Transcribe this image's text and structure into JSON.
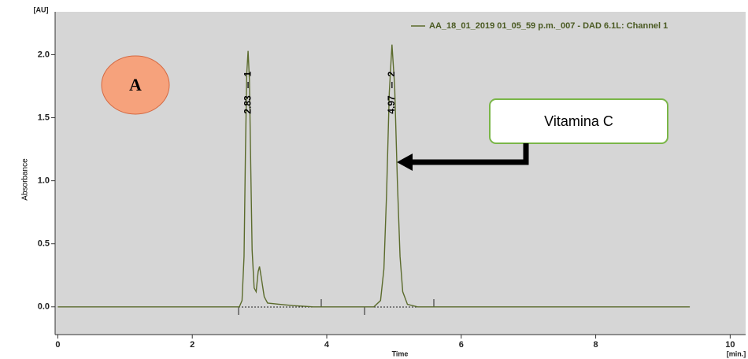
{
  "chart_data": {
    "type": "line",
    "y_unit": "[AU]",
    "x_unit": "[min.]",
    "x_label": "Time",
    "y_label": "Absorbance",
    "xlim": [
      -0.04,
      10.23
    ],
    "ylim": [
      -0.22,
      2.34
    ],
    "xticks": [
      0,
      2,
      4,
      6,
      8,
      10
    ],
    "yticks": [
      {
        "value": 0,
        "label": "0.0"
      },
      {
        "value": 0.5,
        "label": "0.5"
      },
      {
        "value": 1,
        "label": "1.0"
      },
      {
        "value": 1.5,
        "label": "1.5"
      },
      {
        "value": 2,
        "label": "2.0"
      }
    ],
    "x": [
      0,
      2.7,
      2.74,
      2.77,
      2.79,
      2.81,
      2.83,
      2.85,
      2.87,
      2.89,
      2.92,
      2.95,
      2.98,
      3.0,
      3.03,
      3.07,
      3.12,
      3.3,
      3.5,
      3.8,
      4.7,
      4.8,
      4.85,
      4.89,
      4.93,
      4.97,
      5.01,
      5.05,
      5.09,
      5.13,
      5.2,
      5.35,
      9.4
    ],
    "series": [
      {
        "name": "AA_18_01_2019 01_05_59 p.m._007 - DAD 6.1L: Channel 1",
        "color": "#5b6b2c",
        "values": [
          0,
          0,
          0.05,
          0.4,
          1.2,
          1.85,
          2.03,
          1.8,
          1.1,
          0.45,
          0.15,
          0.12,
          0.28,
          0.32,
          0.22,
          0.08,
          0.03,
          0.02,
          0.01,
          0,
          0,
          0.05,
          0.3,
          0.9,
          1.7,
          2.08,
          1.75,
          1.0,
          0.4,
          0.12,
          0.02,
          0,
          0
        ]
      }
    ],
    "peaks": [
      {
        "time": 2.83,
        "id": "1"
      },
      {
        "time": 4.97,
        "id": "2"
      }
    ],
    "annotations": [
      "A",
      "Vitamina C"
    ]
  }
}
